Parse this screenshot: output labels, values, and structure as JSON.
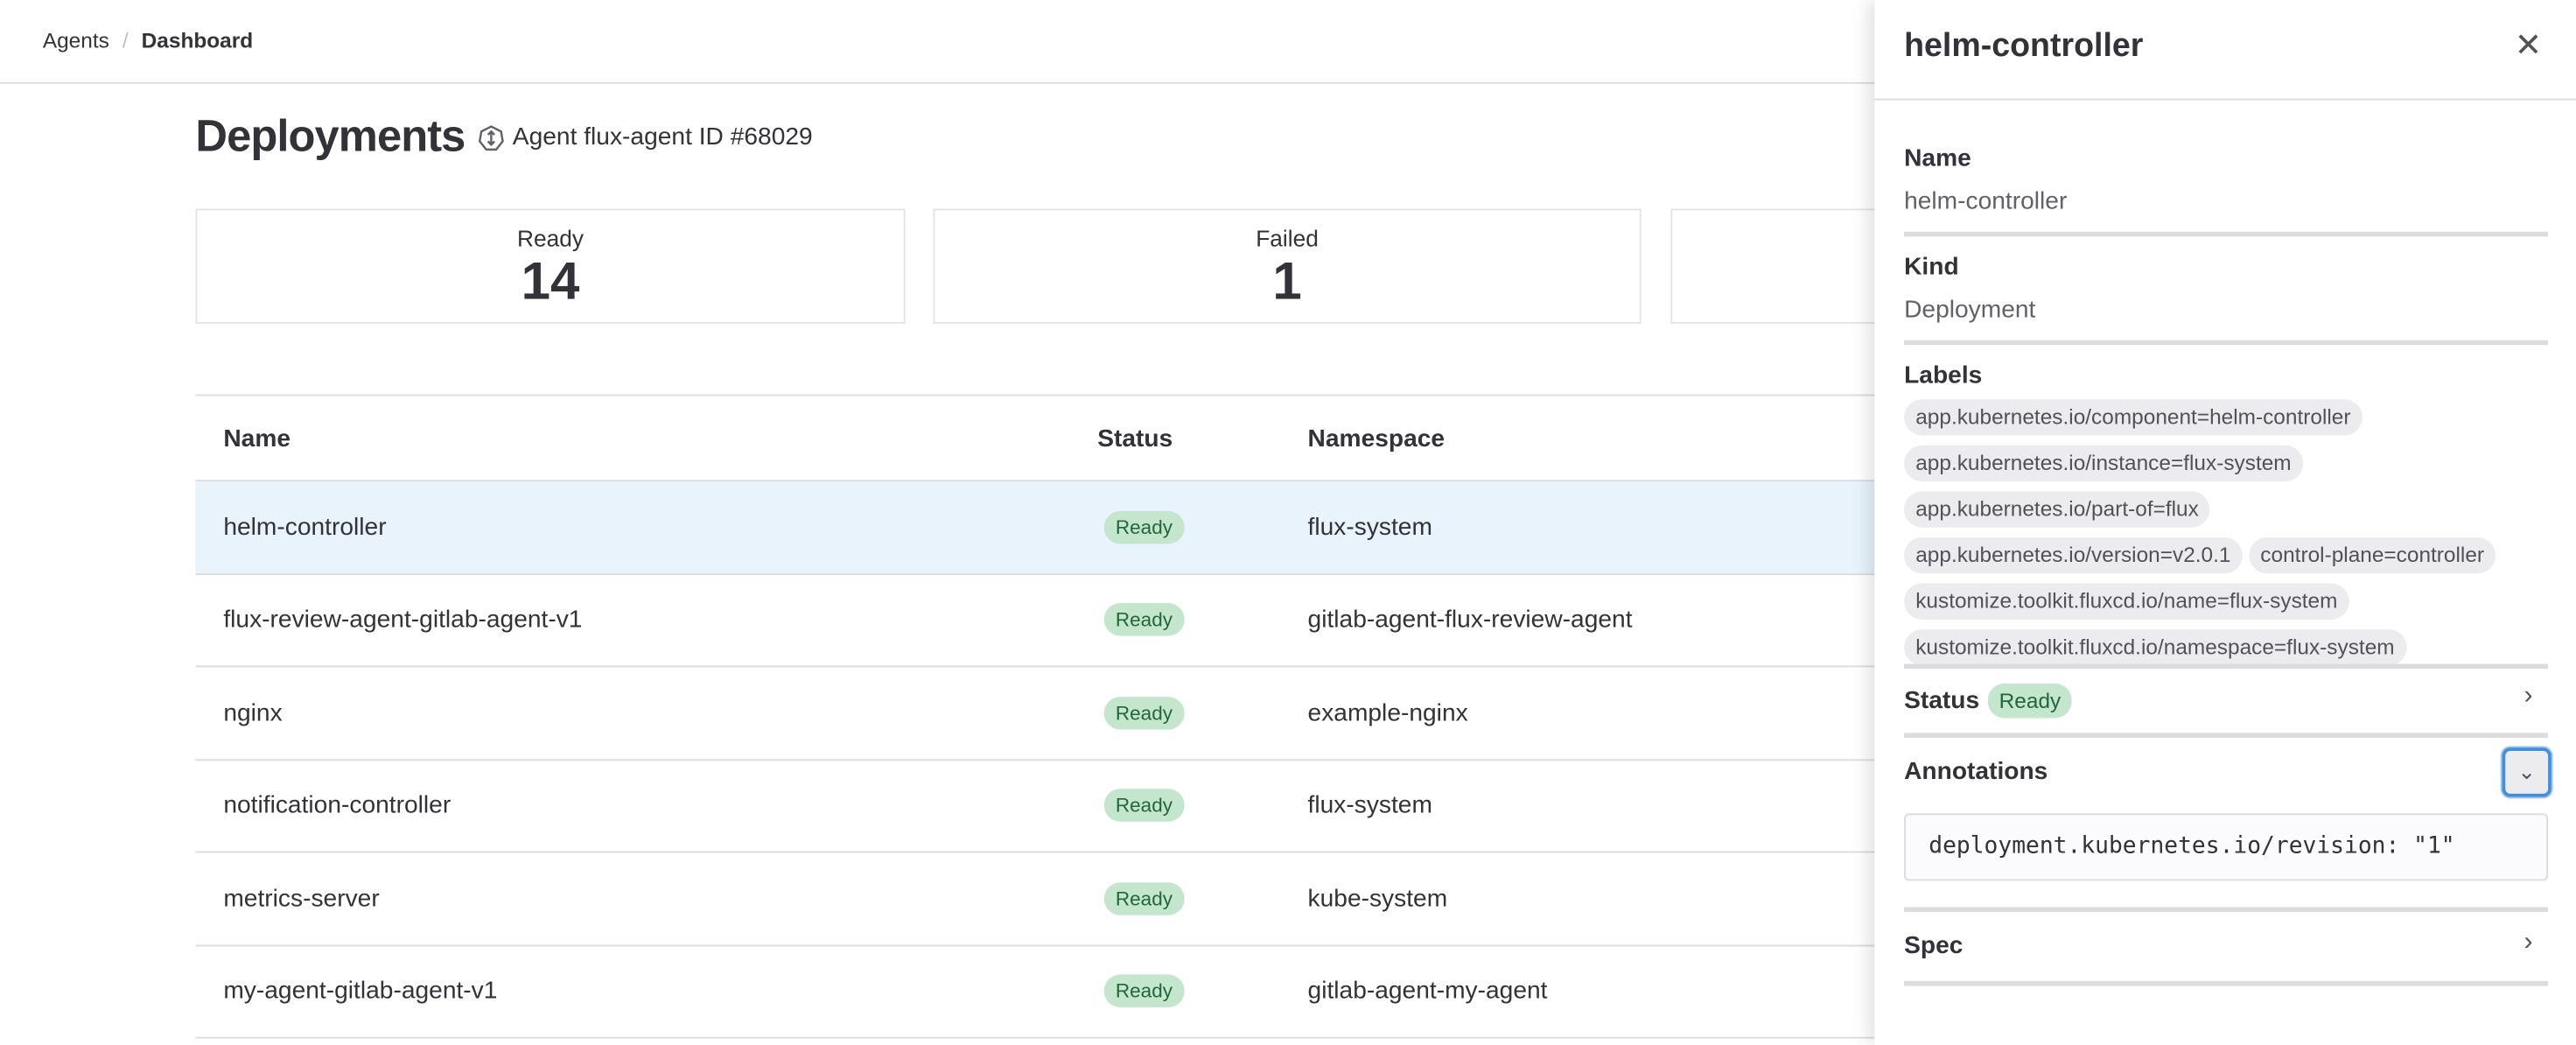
{
  "breadcrumb": {
    "items": [
      "Agents",
      "Dashboard"
    ],
    "separator": "/"
  },
  "page": {
    "title": "Deployments",
    "agent_label": "Agent flux-agent ID #68029",
    "agent_icon": "kubernetes-agent-icon"
  },
  "summary_cards": [
    {
      "label": "Ready",
      "value": "14"
    },
    {
      "label": "Failed",
      "value": "1"
    }
  ],
  "table": {
    "columns": [
      "Name",
      "Status",
      "Namespace"
    ],
    "rows": [
      {
        "name": "helm-controller",
        "status": "Ready",
        "namespace": "flux-system"
      },
      {
        "name": "flux-review-agent-gitlab-agent-v1",
        "status": "Ready",
        "namespace": "gitlab-agent-flux-review-agent"
      },
      {
        "name": "nginx",
        "status": "Ready",
        "namespace": "example-nginx"
      },
      {
        "name": "notification-controller",
        "status": "Ready",
        "namespace": "flux-system"
      },
      {
        "name": "metrics-server",
        "status": "Ready",
        "namespace": "kube-system"
      },
      {
        "name": "my-agent-gitlab-agent-v1",
        "status": "Ready",
        "namespace": "gitlab-agent-my-agent"
      }
    ]
  },
  "drawer": {
    "title": "helm-controller",
    "name_label": "Name",
    "name_value": "helm-controller",
    "kind_label": "Kind",
    "kind_value": "Deployment",
    "labels_label": "Labels",
    "labels": [
      "app.kubernetes.io/component=helm-controller",
      "app.kubernetes.io/instance=flux-system",
      "app.kubernetes.io/part-of=flux",
      "app.kubernetes.io/version=v2.0.1",
      "control-plane=controller",
      "kustomize.toolkit.fluxcd.io/name=flux-system",
      "kustomize.toolkit.fluxcd.io/namespace=flux-system"
    ],
    "status_label": "Status",
    "status_value": "Ready",
    "annotations_label": "Annotations",
    "annotations_code": "deployment.kubernetes.io/revision: \"1\"",
    "spec_label": "Spec"
  },
  "colors": {
    "ready_bg": "#c3e6cd",
    "ready_text": "#24663b",
    "selected_row": "#e9f3fc",
    "focus": "#428fdc"
  }
}
